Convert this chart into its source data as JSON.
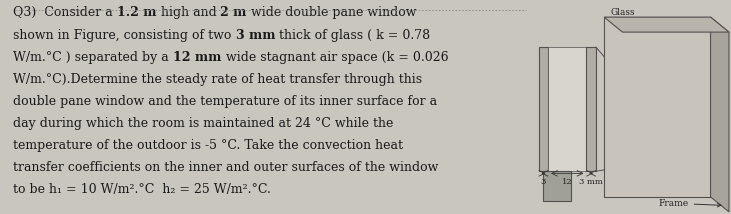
{
  "text_lines": [
    [
      [
        "Q3)  Consider a ",
        false
      ],
      [
        "1.2 m",
        true
      ],
      [
        " high and ",
        false
      ],
      [
        "2 m",
        true
      ],
      [
        " wide double pane window",
        false
      ]
    ],
    [
      [
        "shown in Figure, consisting of two ",
        false
      ],
      [
        "3 mm",
        true
      ],
      [
        " thick of glass ( k = 0.78",
        false
      ]
    ],
    [
      [
        "W/m.°C ) separated by a ",
        false
      ],
      [
        "12 mm",
        true
      ],
      [
        " wide stagnant air space (k = 0.026",
        false
      ]
    ],
    [
      [
        "W/m.°C).Determine the steady rate of heat transfer through this",
        false
      ]
    ],
    [
      [
        "double pane window and the temperature of its inner surface for a",
        false
      ]
    ],
    [
      [
        "day during which the room is maintained at 24 °C while the",
        false
      ]
    ],
    [
      [
        "temperature of the outdoor is -5 °C. Take the convection heat",
        false
      ]
    ],
    [
      [
        "transfer coefficients on the inner and outer surfaces of the window",
        false
      ]
    ],
    [
      [
        "to be h₁ = 10 W/m².°C  h₂ = 25 W/m².°C.",
        false
      ]
    ]
  ],
  "fontsize": 9.0,
  "text_color": "#1a1a1a",
  "fig_bg": "#c9c5bf",
  "diag_bg": "#c9c5bf",
  "glass_label": "Glass",
  "frame_label": "Frame",
  "dim_text_3_left": "3",
  "dim_text_12": "12",
  "dim_text_3_right": "3 mm",
  "colors": {
    "glass": "#b0ada4",
    "air": "#d8d5ce",
    "frame_face": "#c8c4bc",
    "frame_side": "#a8a49c",
    "frame_top": "#b8b4ac",
    "frame_deep": "#989490",
    "edge": "#555050",
    "base": "#a0a098"
  }
}
